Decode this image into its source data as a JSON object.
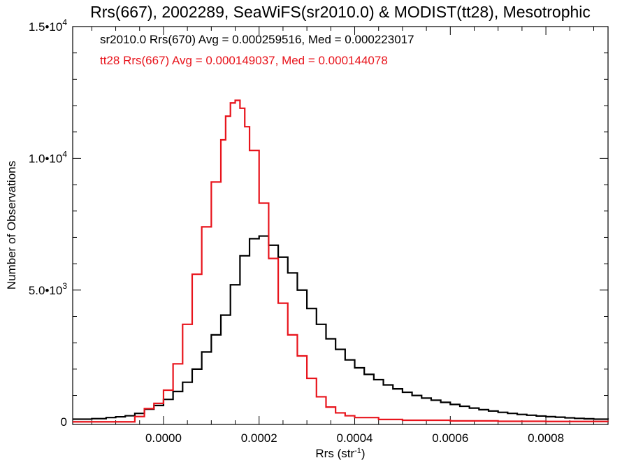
{
  "chart_data": {
    "type": "line",
    "title": "Rrs(667), 2002289, SeaWiFS(sr2010.0) & MODIST(tt28), Mesotrophic",
    "xlabel": "Rrs (str",
    "xlabel_sup": "-1",
    "xlabel_close": ")",
    "ylabel": "Number of Observations",
    "xlim": [
      -0.00019,
      0.00093
    ],
    "ylim": [
      -100,
      15000
    ],
    "x_ticks": [
      0.0,
      0.0002,
      0.0004,
      0.0006,
      0.0008
    ],
    "x_tick_labels": [
      "0.0000",
      "0.0002",
      "0.0004",
      "0.0006",
      "0.0008"
    ],
    "y_ticks": [
      {
        "value": 0,
        "mantissa": "0",
        "exp": ""
      },
      {
        "value": 5000,
        "mantissa": "5.0•10",
        "exp": "3"
      },
      {
        "value": 10000,
        "mantissa": "1.0•10",
        "exp": "4"
      },
      {
        "value": 15000,
        "mantissa": "1.5•10",
        "exp": "4"
      }
    ],
    "grid": false,
    "annotations": [
      {
        "text": "sr2010.0 Rrs(670) Avg = 0.000259516, Med = 0.000223017",
        "color": "#000000"
      },
      {
        "text": "tt28 Rrs(667) Avg = 0.000149037, Med = 0.000144078",
        "color": "#e8141c"
      }
    ],
    "series": [
      {
        "color": "#000000",
        "style": "step",
        "points": [
          [
            -0.00019,
            100
          ],
          [
            -0.00015,
            120
          ],
          [
            -0.00012,
            160
          ],
          [
            -0.0001,
            190
          ],
          [
            -8e-05,
            230
          ],
          [
            -6e-05,
            320
          ],
          [
            -4e-05,
            480
          ],
          [
            -2e-05,
            620
          ],
          [
            0.0,
            850
          ],
          [
            2e-05,
            1150
          ],
          [
            4e-05,
            1500
          ],
          [
            6e-05,
            2000
          ],
          [
            8e-05,
            2650
          ],
          [
            0.0001,
            3300
          ],
          [
            0.00012,
            4050
          ],
          [
            0.00014,
            5200
          ],
          [
            0.00016,
            6300
          ],
          [
            0.00018,
            6950
          ],
          [
            0.0002,
            7050
          ],
          [
            0.00022,
            6700
          ],
          [
            0.00024,
            6250
          ],
          [
            0.00026,
            5650
          ],
          [
            0.00028,
            5000
          ],
          [
            0.0003,
            4300
          ],
          [
            0.00032,
            3700
          ],
          [
            0.00034,
            3150
          ],
          [
            0.00036,
            2750
          ],
          [
            0.00038,
            2350
          ],
          [
            0.0004,
            2050
          ],
          [
            0.00042,
            1800
          ],
          [
            0.00044,
            1600
          ],
          [
            0.00046,
            1400
          ],
          [
            0.00048,
            1250
          ],
          [
            0.0005,
            1120
          ],
          [
            0.00052,
            1000
          ],
          [
            0.00054,
            900
          ],
          [
            0.00056,
            820
          ],
          [
            0.00058,
            740
          ],
          [
            0.0006,
            660
          ],
          [
            0.00062,
            590
          ],
          [
            0.00064,
            520
          ],
          [
            0.00066,
            460
          ],
          [
            0.00068,
            410
          ],
          [
            0.0007,
            360
          ],
          [
            0.00072,
            320
          ],
          [
            0.00074,
            280
          ],
          [
            0.00076,
            250
          ],
          [
            0.00078,
            220
          ],
          [
            0.0008,
            195
          ],
          [
            0.00082,
            175
          ],
          [
            0.00084,
            150
          ],
          [
            0.00086,
            130
          ],
          [
            0.00088,
            115
          ],
          [
            0.0009,
            100
          ],
          [
            0.00093,
            90
          ]
        ]
      },
      {
        "color": "#e8141c",
        "style": "step",
        "points": [
          [
            -0.00019,
            0
          ],
          [
            -0.0001,
            0
          ],
          [
            -7e-05,
            0
          ],
          [
            -6e-05,
            200
          ],
          [
            -4e-05,
            500
          ],
          [
            -2e-05,
            700
          ],
          [
            0.0,
            1200
          ],
          [
            2e-05,
            2200
          ],
          [
            4e-05,
            3700
          ],
          [
            6e-05,
            5600
          ],
          [
            8e-05,
            7400
          ],
          [
            0.0001,
            9100
          ],
          [
            0.00012,
            10700
          ],
          [
            0.00013,
            11600
          ],
          [
            0.00014,
            12100
          ],
          [
            0.00015,
            12200
          ],
          [
            0.00016,
            11900
          ],
          [
            0.00017,
            11200
          ],
          [
            0.00018,
            10300
          ],
          [
            0.0002,
            8300
          ],
          [
            0.00022,
            6200
          ],
          [
            0.00024,
            4500
          ],
          [
            0.00026,
            3300
          ],
          [
            0.00028,
            2500
          ],
          [
            0.0003,
            1650
          ],
          [
            0.00032,
            950
          ],
          [
            0.00034,
            560
          ],
          [
            0.00036,
            340
          ],
          [
            0.00038,
            230
          ],
          [
            0.0004,
            160
          ],
          [
            0.00045,
            90
          ],
          [
            0.0005,
            60
          ],
          [
            0.0006,
            35
          ],
          [
            0.0007,
            20
          ],
          [
            0.0008,
            12
          ],
          [
            0.00093,
            8
          ]
        ]
      }
    ]
  }
}
